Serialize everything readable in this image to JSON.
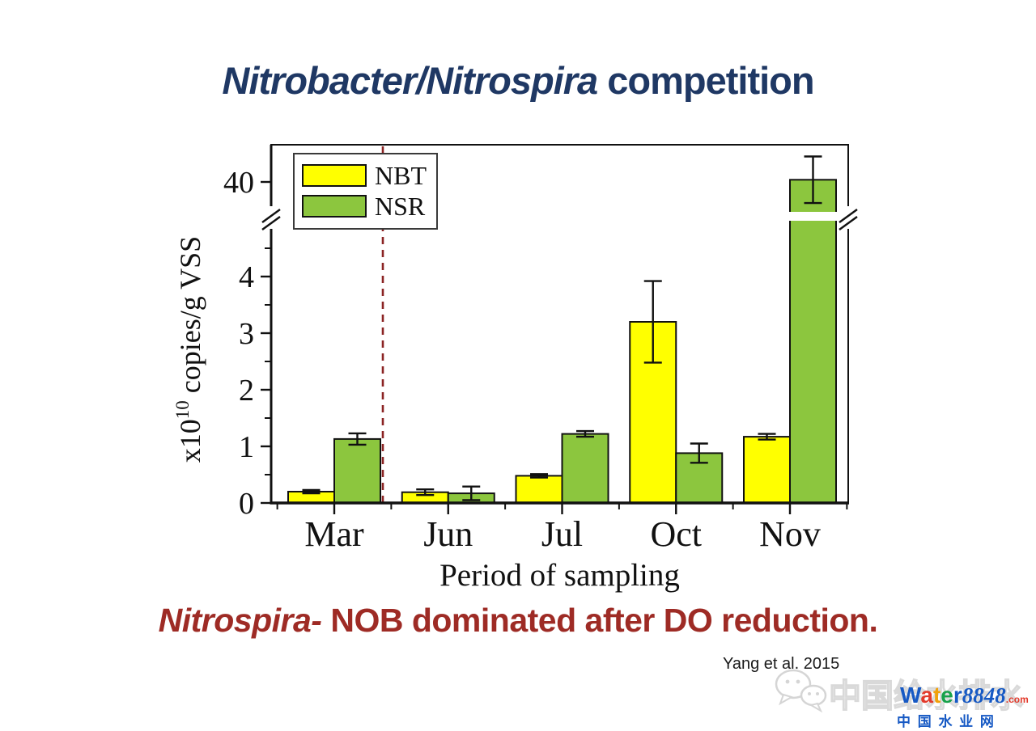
{
  "title": {
    "italic": "Nitrobacter/Nitrospira",
    "regular": " competition",
    "color": "#1F3864"
  },
  "caption": {
    "italic": "Nitrospira-",
    "regular": " NOB dominated after DO reduction.",
    "color": "#9E2B25"
  },
  "citation": {
    "text": "Yang et al. 2015"
  },
  "chart_data": {
    "type": "bar",
    "title": "",
    "categories": [
      "Mar",
      "Jun",
      "Jul",
      "Oct",
      "Nov"
    ],
    "series": [
      {
        "name": "NBT",
        "color": "#FFFF00",
        "values": [
          0.2,
          0.19,
          0.48,
          3.2,
          1.17
        ],
        "errors": [
          0.03,
          0.05,
          0.03,
          0.72,
          0.05
        ]
      },
      {
        "name": "NSR",
        "color": "#8CC63E",
        "values": [
          1.13,
          0.17,
          1.22,
          0.88,
          40.3
        ],
        "errors": [
          0.1,
          0.12,
          0.05,
          0.17,
          3.2
        ]
      }
    ],
    "xlabel": "Period of sampling",
    "ylabel": {
      "prefix": "x10",
      "superscript": "10",
      "suffix": " copies/g VSS"
    },
    "unit_note": "values are x10^10 copies/g VSS",
    "yticks_lower": [
      0,
      1,
      2,
      3,
      4
    ],
    "ytick_upper": "40",
    "ylim_lower": [
      0,
      4.7
    ],
    "upper_segment_ref": 40,
    "axis_break": true,
    "grid": false,
    "legend_position": "top-left",
    "bar_border_color": "#111111",
    "annotations": {
      "dashed_line_after_category": "Mar",
      "dashed_color": "#8B2323"
    }
  },
  "watermark": {
    "site_zh": "中国给水排水",
    "logo": {
      "letters": [
        {
          "ch": "W",
          "color": "#1659C4"
        },
        {
          "ch": "a",
          "color": "#E23A2B"
        },
        {
          "ch": "t",
          "color": "#F1A10A"
        },
        {
          "ch": "e",
          "color": "#18A24B"
        },
        {
          "ch": "r",
          "color": "#1659C4"
        }
      ],
      "number": "8848",
      "tld": ".com"
    },
    "subtitle_zh": "中 国 水 业 网"
  }
}
